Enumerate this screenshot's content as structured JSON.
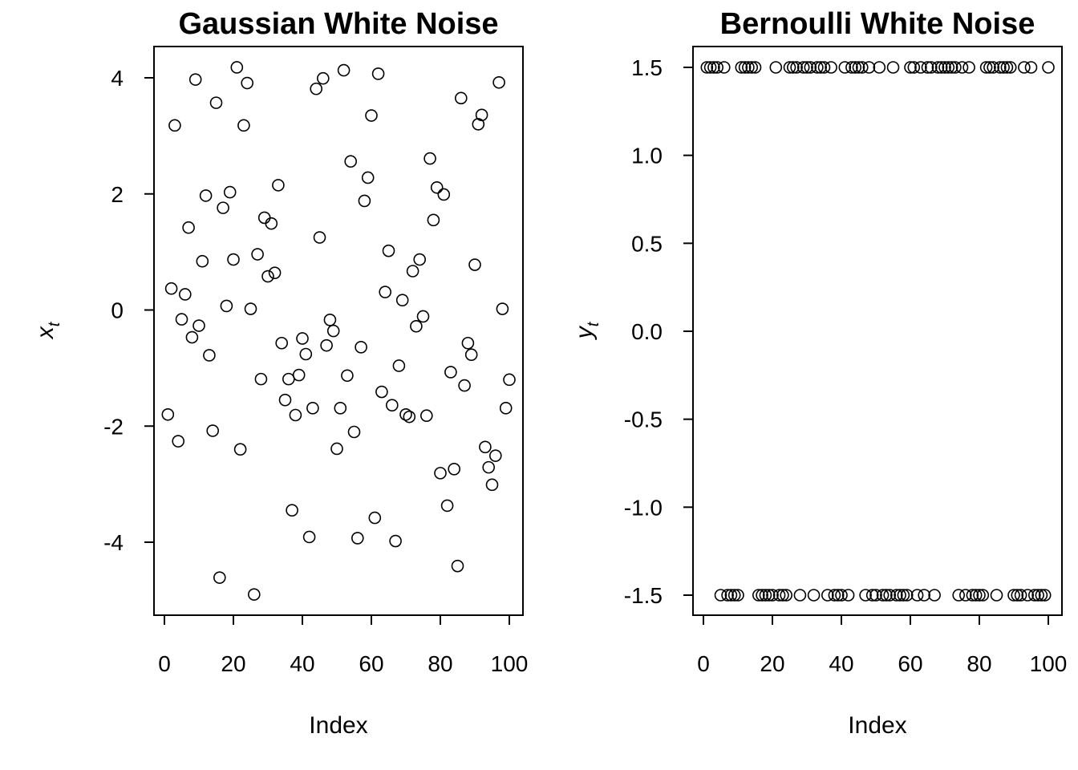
{
  "chart_data": [
    {
      "type": "scatter",
      "title": "Gaussian White Noise",
      "xlabel": "Index",
      "ylabel_main": "x",
      "ylabel_sub": "t",
      "xlim": [
        0,
        100
      ],
      "ylim": [
        -5,
        4.5
      ],
      "xticks": [
        0,
        20,
        40,
        60,
        80,
        100
      ],
      "xtick_labels": [
        "0",
        "20",
        "40",
        "60",
        "80",
        "100"
      ],
      "yticks": [
        -4,
        -2,
        0,
        2,
        4
      ],
      "ytick_labels": [
        "-4",
        "-2",
        "0",
        "2",
        "4"
      ],
      "grid": false,
      "x": [
        1,
        2,
        3,
        4,
        5,
        6,
        7,
        8,
        9,
        10,
        11,
        12,
        13,
        14,
        15,
        16,
        17,
        18,
        19,
        20,
        21,
        22,
        23,
        24,
        25,
        26,
        27,
        28,
        29,
        30,
        31,
        32,
        33,
        34,
        35,
        36,
        37,
        38,
        39,
        40,
        41,
        42,
        43,
        44,
        45,
        46,
        47,
        48,
        49,
        50,
        51,
        52,
        53,
        54,
        55,
        56,
        57,
        58,
        59,
        60,
        61,
        62,
        63,
        64,
        65,
        66,
        67,
        68,
        69,
        70,
        71,
        72,
        73,
        74,
        75,
        76,
        77,
        78,
        79,
        80,
        81,
        82,
        83,
        84,
        85,
        86,
        87,
        88,
        89,
        90,
        91,
        92,
        93,
        94,
        95,
        96,
        97,
        98,
        99,
        100
      ],
      "y": [
        -1.8,
        0.37,
        3.18,
        -2.26,
        -0.16,
        0.27,
        1.42,
        -0.47,
        3.97,
        -0.27,
        0.84,
        1.97,
        -0.78,
        -2.08,
        3.57,
        -4.61,
        1.76,
        0.07,
        2.03,
        0.87,
        4.18,
        -2.4,
        3.18,
        3.91,
        0.02,
        -4.9,
        0.96,
        -1.19,
        1.59,
        0.58,
        1.49,
        0.64,
        2.15,
        -0.57,
        -1.55,
        -1.19,
        -3.45,
        -1.81,
        -1.12,
        -0.49,
        -0.76,
        -3.91,
        -1.69,
        3.81,
        1.25,
        3.99,
        -0.61,
        -0.17,
        -0.36,
        -2.39,
        -1.69,
        4.13,
        -1.13,
        2.56,
        -2.1,
        -3.93,
        -0.64,
        1.88,
        2.28,
        3.35,
        -3.58,
        4.07,
        -1.41,
        0.31,
        1.02,
        -1.64,
        -3.98,
        -0.96,
        0.17,
        -1.8,
        -1.84,
        0.67,
        -0.28,
        0.87,
        -0.11,
        -1.82,
        2.61,
        1.55,
        2.11,
        -2.81,
        1.99,
        -3.37,
        -1.07,
        -2.74,
        -4.41,
        3.65,
        -1.3,
        -0.57,
        -0.77,
        0.78,
        3.2,
        3.36,
        -2.36,
        -2.71,
        -3.01,
        -2.51,
        3.92,
        0.02,
        -1.69,
        -1.2
      ]
    },
    {
      "type": "scatter",
      "title": "Bernoulli White Noise",
      "xlabel": "Index",
      "ylabel_main": "y",
      "ylabel_sub": "t",
      "xlim": [
        0,
        100
      ],
      "ylim": [
        -1.6,
        1.6
      ],
      "xticks": [
        0,
        20,
        40,
        60,
        80,
        100
      ],
      "xtick_labels": [
        "0",
        "20",
        "40",
        "60",
        "80",
        "100"
      ],
      "yticks": [
        -1.5,
        -1.0,
        -0.5,
        0.0,
        0.5,
        1.0,
        1.5
      ],
      "ytick_labels": [
        "-1.5",
        "-1.0",
        "-0.5",
        "0.0",
        "0.5",
        "1.0",
        "1.5"
      ],
      "grid": false,
      "x": [
        1,
        2,
        3,
        4,
        5,
        6,
        7,
        8,
        9,
        10,
        11,
        12,
        13,
        14,
        15,
        16,
        17,
        18,
        19,
        20,
        21,
        22,
        23,
        24,
        25,
        26,
        27,
        28,
        29,
        30,
        31,
        32,
        33,
        34,
        35,
        36,
        37,
        38,
        39,
        40,
        41,
        42,
        43,
        44,
        45,
        46,
        47,
        48,
        49,
        50,
        51,
        52,
        53,
        54,
        55,
        56,
        57,
        58,
        59,
        60,
        61,
        62,
        63,
        64,
        65,
        66,
        67,
        68,
        69,
        70,
        71,
        72,
        73,
        74,
        75,
        76,
        77,
        78,
        79,
        80,
        81,
        82,
        83,
        84,
        85,
        86,
        87,
        88,
        89,
        90,
        91,
        92,
        93,
        94,
        95,
        96,
        97,
        98,
        99,
        100
      ],
      "y": [
        1.5,
        1.5,
        1.5,
        1.5,
        -1.5,
        1.5,
        -1.5,
        -1.5,
        -1.5,
        -1.5,
        1.5,
        1.5,
        1.5,
        1.5,
        1.5,
        -1.5,
        -1.5,
        -1.5,
        -1.5,
        -1.5,
        1.5,
        -1.5,
        -1.5,
        -1.5,
        1.5,
        1.5,
        1.5,
        -1.5,
        1.5,
        1.5,
        1.5,
        -1.5,
        1.5,
        1.5,
        1.5,
        -1.5,
        1.5,
        -1.5,
        -1.5,
        -1.5,
        1.5,
        -1.5,
        1.5,
        1.5,
        1.5,
        1.5,
        -1.5,
        1.5,
        -1.5,
        -1.5,
        1.5,
        -1.5,
        -1.5,
        -1.5,
        1.5,
        -1.5,
        -1.5,
        -1.5,
        -1.5,
        1.5,
        1.5,
        -1.5,
        1.5,
        -1.5,
        1.5,
        1.5,
        -1.5,
        1.5,
        1.5,
        1.5,
        1.5,
        1.5,
        1.5,
        -1.5,
        1.5,
        -1.5,
        1.5,
        -1.5,
        -1.5,
        -1.5,
        -1.5,
        1.5,
        1.5,
        1.5,
        -1.5,
        1.5,
        1.5,
        1.5,
        1.5,
        -1.5,
        -1.5,
        -1.5,
        1.5,
        -1.5,
        1.5,
        -1.5,
        -1.5,
        -1.5,
        -1.5,
        1.5
      ]
    }
  ]
}
